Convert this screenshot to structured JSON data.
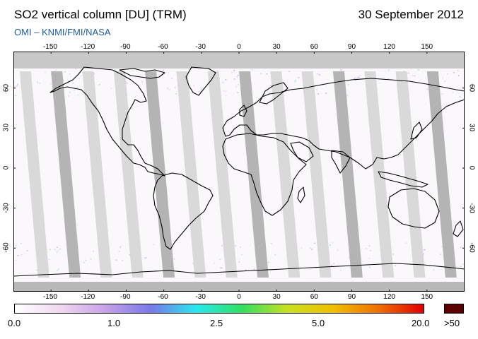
{
  "title": "SO2 vertical column [DU] (TRM)",
  "date": "30 September 2012",
  "credit": "OMI  –  KNMI/FMI/NASA",
  "lon_ticks": [
    "-150",
    "-120",
    "-90",
    "-60",
    "-30",
    "0",
    "30",
    "60",
    "90",
    "120",
    "150"
  ],
  "lat_ticks": [
    "60",
    "30",
    "0",
    "-30",
    "-60"
  ],
  "colorbar": {
    "labels": [
      "0.0",
      "1.0",
      "2.5",
      "5.0",
      "20.0"
    ],
    "max_label": ">50",
    "stops": [
      "#ffffff",
      "#f0d8f0",
      "#c8a0e8",
      "#7878e8",
      "#28e8f0",
      "#30e060",
      "#c8e020",
      "#f0c000",
      "#f07000",
      "#e00000"
    ],
    "max_color": "#5a0000"
  },
  "colors": {
    "polar_night": "#c8c8c8",
    "swath_light": "#d4d4d4",
    "swath_dark": "#a8a8a8",
    "credit": "#1f5d96"
  }
}
